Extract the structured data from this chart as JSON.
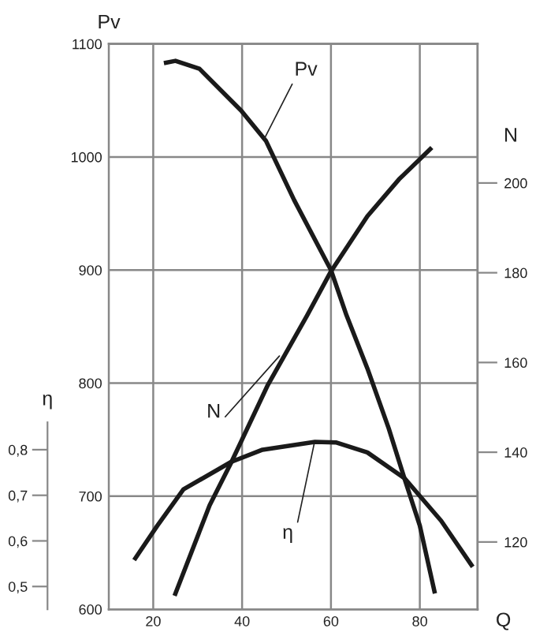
{
  "chart_data": {
    "type": "line",
    "xlabel": "Q",
    "ylabel": "Pv",
    "y2label": "N",
    "y3label": "η",
    "xlim": [
      10,
      93
    ],
    "xticks": [
      20,
      40,
      60,
      80
    ],
    "ylim": [
      600,
      1100
    ],
    "yticks": [
      600,
      700,
      800,
      900,
      1000,
      1100
    ],
    "y2lim": [
      105,
      231
    ],
    "y2ticks": [
      120,
      140,
      160,
      180,
      200
    ],
    "y3lim": [
      0.45,
      1.69
    ],
    "y3ticks": [
      {
        "value": 0.5,
        "label": "0,5"
      },
      {
        "value": 0.6,
        "label": "0,6"
      },
      {
        "value": 0.7,
        "label": "0,7"
      },
      {
        "value": 0.8,
        "label": "0,8"
      }
    ],
    "grid": true,
    "marker": "none",
    "line_style": "solid",
    "series": [
      {
        "color": "#1a1a1a",
        "axis": "y",
        "x": [
          22.4,
          25,
          30.4,
          39.8,
          45.4,
          51.7,
          60,
          63.5,
          68.2,
          73,
          76.6,
          80,
          83.4
        ],
        "values": [
          1083,
          1085,
          1078,
          1041,
          1014,
          962,
          900,
          860,
          813,
          760,
          715,
          674,
          614
        ]
      },
      {
        "color": "#1a1a1a",
        "axis": "y2",
        "x": [
          24.8,
          32.7,
          37.5,
          45.8,
          54.6,
          60,
          68.2,
          75.3,
          82.7
        ],
        "values": [
          108,
          128.2,
          137.6,
          155,
          170.4,
          180.3,
          192.6,
          200.8,
          207.9
        ]
      },
      {
        "color": "#1a1a1a",
        "axis": "y3",
        "x": [
          15.7,
          20.9,
          26.8,
          37.5,
          44.6,
          56.4,
          61.1,
          68.2,
          76.6,
          84.8,
          91.9
        ],
        "values": [
          0.558,
          0.633,
          0.713,
          0.773,
          0.8,
          0.817,
          0.816,
          0.794,
          0.737,
          0.644,
          0.543
        ]
      }
    ],
    "annotations": [
      {
        "text": "Pv",
        "x": 45,
        "y": 1016
      },
      {
        "text": "N",
        "x": 48.4,
        "y": 824
      },
      {
        "text": "η",
        "x": 56.2,
        "y": 746
      }
    ]
  }
}
